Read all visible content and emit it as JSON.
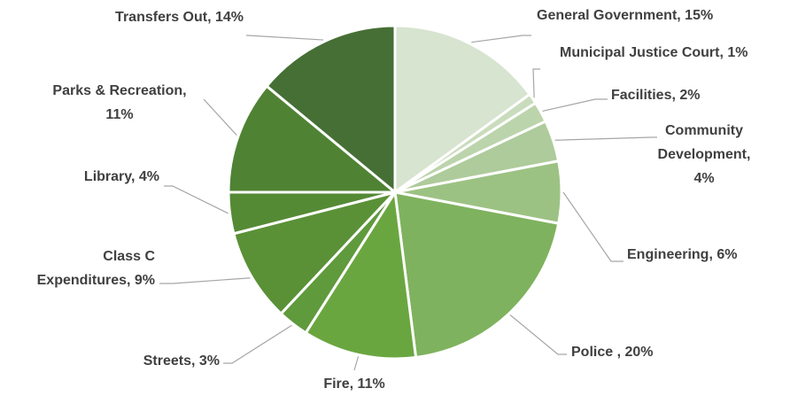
{
  "chart_data": {
    "type": "pie",
    "labels": [
      [
        "General Government, 15%"
      ],
      [
        "Municipal Justice Court, 1%"
      ],
      [
        "Facilities, 2%"
      ],
      [
        "Community",
        "Development,",
        "4%"
      ],
      [
        "Engineering, 6%"
      ],
      [
        "Police , 20%"
      ],
      [
        "Fire, 11%"
      ],
      [
        "Streets, 3%"
      ],
      [
        "Class C",
        "Expenditures, 9%"
      ],
      [
        "Library, 4%"
      ],
      [
        "Parks & Recreation,",
        "11%"
      ],
      [
        "Transfers Out, 14%"
      ]
    ],
    "values": [
      15,
      1,
      2,
      4,
      6,
      20,
      11,
      3,
      9,
      4,
      11,
      14
    ],
    "colors": [
      "#d7e4cf",
      "#c9dcbc",
      "#bcd4ac",
      "#aecb9b",
      "#9cc283",
      "#7fb25e",
      "#6aa640",
      "#5f9a3c",
      "#5a9137",
      "#558a35",
      "#4f8333",
      "#466f35"
    ]
  }
}
